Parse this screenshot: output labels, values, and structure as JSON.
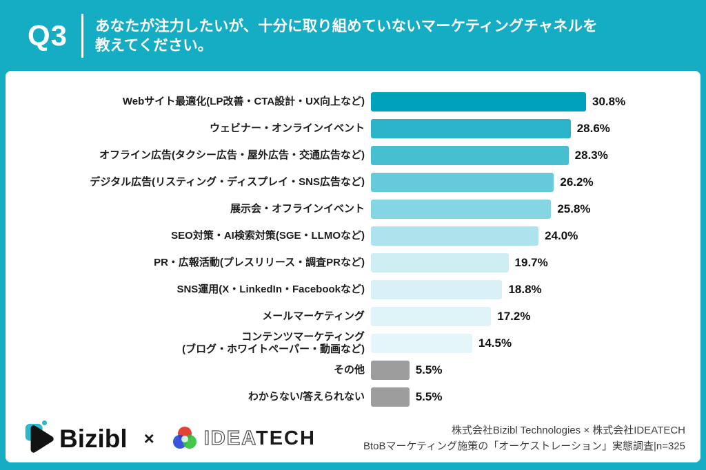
{
  "header": {
    "badge": "Q3",
    "question_line1": "あなたが注力したいが、十分に取り組めていないマーケティングチャネルを",
    "question_line2": "教えてください。"
  },
  "chart_data": {
    "type": "bar",
    "orientation": "horizontal",
    "unit": "%",
    "xlim": [
      0,
      32
    ],
    "grid": false,
    "legend": "none",
    "rows": [
      {
        "label": "Webサイト最適化(LP改善・CTA設計・UX向上など)",
        "value": 30.8,
        "display": "30.8%",
        "color": "#00A2BB"
      },
      {
        "label": "ウェビナー・オンラインイベント",
        "value": 28.6,
        "display": "28.6%",
        "color": "#2BB4C9"
      },
      {
        "label": "オフライン広告(タクシー広告・屋外広告・交通広告など)",
        "value": 28.3,
        "display": "28.3%",
        "color": "#47BFD1"
      },
      {
        "label": "デジタル広告(リスティング・ディスプレイ・SNS広告など)",
        "value": 26.2,
        "display": "26.2%",
        "color": "#66CADA"
      },
      {
        "label": "展示会・オフラインイベント",
        "value": 25.8,
        "display": "25.8%",
        "color": "#86D5E2"
      },
      {
        "label": "SEO対策・AI検索対策(SGE・LLMOなど)",
        "value": 24.0,
        "display": "24.0%",
        "color": "#AEE2EC"
      },
      {
        "label": "PR・広報活動(プレスリリース・調査PRなど)",
        "value": 19.7,
        "display": "19.7%",
        "color": "#CFEEF3"
      },
      {
        "label": "SNS運用(X・LinkedIn・Facebookなど)",
        "value": 18.8,
        "display": "18.8%",
        "color": "#D9F1F6"
      },
      {
        "label": "メールマーケティング",
        "value": 17.2,
        "display": "17.2%",
        "color": "#DFF4F8"
      },
      {
        "label": "コンテンツマーケティング",
        "label2": "(ブログ・ホワイトペーパー・動画など)",
        "value": 14.5,
        "display": "14.5%",
        "color": "#E4F6F9"
      },
      {
        "label": "その他",
        "value": 5.5,
        "display": "5.5%",
        "color": "#9D9D9D"
      },
      {
        "label": "わからない/答えられない",
        "value": 5.5,
        "display": "5.5%",
        "color": "#9D9D9D"
      }
    ]
  },
  "footer": {
    "bizibl_text": "Bizibl",
    "separator": "×",
    "ideatech_idea": "IDEA",
    "ideatech_tech": "TECH",
    "credit_line1": "株式会社Bizibl Technologies × 株式会社IDEATECH",
    "credit_line2": "BtoBマーケティング施策の「オーケストレーション」実態調査|n=325"
  },
  "colors": {
    "frame_teal": "#15ADC3",
    "panel_white": "#FFFFFF",
    "text_dark": "#1C1C1C",
    "credit_gray": "#3D3D3D",
    "other_gray": "#9D9D9D",
    "bizibl_accent": "#2FB7CB",
    "ideatech_red": "#E23228",
    "ideatech_green": "#2BBF35",
    "ideatech_blue": "#1E3FD8"
  }
}
